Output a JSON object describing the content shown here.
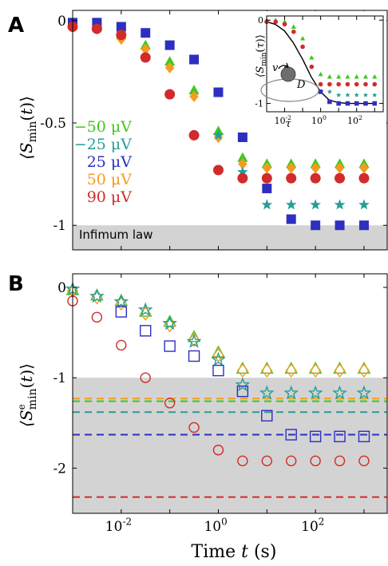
{
  "chart_data": [
    {
      "panel": "A",
      "type": "scatter",
      "ylabel": "⟨S_min(t)⟩",
      "xscale": "log",
      "xlim": [
        0.001,
        3000
      ],
      "ylim": [
        -1.12,
        0.05
      ],
      "ytick_labels": [
        "0",
        "-0.5",
        "-1"
      ],
      "yticks": [
        0,
        -0.5,
        -1
      ],
      "annotation": "Infimum law",
      "shaded_region": [
        -1.12,
        -1.0
      ],
      "legend_position": "left-middle",
      "legend": [
        {
          "label": "−50 μV",
          "color": "#3fc81e"
        },
        {
          "label": "−25 μV",
          "color": "#279d96"
        },
        {
          "label": "25 μV",
          "color": "#2d2fc0"
        },
        {
          "label": "50 μV",
          "color": "#f59b1f"
        },
        {
          "label": "90 μV",
          "color": "#d12b2b"
        }
      ],
      "series": [
        {
          "name": "−50 μV",
          "marker": "triangle",
          "color": "#3fc81e",
          "filled": true,
          "x": [
            0.001,
            0.00316,
            0.01,
            0.0316,
            0.1,
            0.316,
            1,
            3.16,
            10,
            31.6,
            100,
            316,
            1000
          ],
          "y": [
            -0.01,
            -0.03,
            -0.07,
            -0.12,
            -0.2,
            -0.34,
            -0.54,
            -0.67,
            -0.7,
            -0.7,
            -0.7,
            -0.7,
            -0.7
          ]
        },
        {
          "name": "50 μV",
          "marker": "diamond",
          "color": "#f59b1f",
          "filled": true,
          "x": [
            0.001,
            0.00316,
            0.01,
            0.0316,
            0.1,
            0.316,
            1,
            3.16,
            10,
            31.6,
            100,
            316,
            1000
          ],
          "y": [
            -0.02,
            -0.04,
            -0.09,
            -0.14,
            -0.23,
            -0.37,
            -0.57,
            -0.7,
            -0.72,
            -0.72,
            -0.72,
            -0.72,
            -0.72
          ]
        },
        {
          "name": "25 μV",
          "marker": "square",
          "color": "#2d2fc0",
          "filled": true,
          "x": [
            0.001,
            0.00316,
            0.01,
            0.0316,
            0.1,
            0.316,
            1,
            3.16,
            10,
            31.6,
            100,
            316,
            1000
          ],
          "y": [
            -0.01,
            -0.01,
            -0.03,
            -0.06,
            -0.12,
            -0.19,
            -0.35,
            -0.57,
            -0.82,
            -0.97,
            -1.0,
            -1.0,
            -1.0
          ]
        },
        {
          "name": "−25 μV",
          "marker": "star",
          "color": "#279d96",
          "filled": true,
          "x": [
            1,
            3.16,
            10,
            31.6,
            100,
            316,
            1000
          ],
          "y": [
            -0.56,
            -0.74,
            -0.9,
            -0.9,
            -0.9,
            -0.9,
            -0.9
          ]
        },
        {
          "name": "90 μV",
          "marker": "circle",
          "color": "#d12b2b",
          "filled": true,
          "x": [
            0.001,
            0.00316,
            0.01,
            0.0316,
            0.1,
            0.316,
            1,
            3.16,
            10,
            31.6,
            100,
            316,
            1000
          ],
          "y": [
            -0.03,
            -0.04,
            -0.07,
            -0.18,
            -0.36,
            -0.56,
            -0.73,
            -0.77,
            -0.77,
            -0.77,
            -0.77,
            -0.77,
            -0.77
          ]
        }
      ]
    },
    {
      "panel": "A-inset",
      "type": "scatter",
      "xlabel": "τ",
      "ylabel": "⟨S_min(τ)⟩",
      "xscale": "log",
      "xlim": [
        0.001,
        3000
      ],
      "ylim": [
        -1.1,
        0.05
      ],
      "ytick_labels": [
        "0",
        "-1"
      ],
      "yticks": [
        0,
        -1
      ],
      "xtick_labels": [
        "10-2",
        "100",
        "102"
      ],
      "xticks": [
        0.01,
        1,
        100
      ],
      "diagram_labels": {
        "v": "v",
        "D": "D"
      },
      "curve": {
        "color": "#000000",
        "x": [
          0.001,
          0.003,
          0.01,
          0.03,
          0.1,
          0.3,
          1,
          3,
          10,
          30,
          100,
          300,
          1000
        ],
        "y": [
          -0.02,
          -0.05,
          -0.13,
          -0.27,
          -0.47,
          -0.68,
          -0.86,
          -0.96,
          -0.99,
          -1.0,
          -1.0,
          -1.0,
          -1.0
        ]
      },
      "series": [
        {
          "name": "−50 μV",
          "marker": "triangle",
          "color": "#3fc81e",
          "x": [
            0.001,
            0.00316,
            0.01,
            0.0316,
            0.1,
            0.316,
            1,
            3.16,
            10,
            31.6,
            100,
            316,
            1000
          ],
          "y": [
            0,
            0,
            -0.02,
            -0.08,
            -0.22,
            -0.45,
            -0.65,
            -0.68,
            -0.68,
            -0.68,
            -0.68,
            -0.68,
            -0.68
          ]
        },
        {
          "name": "90 μV",
          "marker": "circle",
          "color": "#d12b2b",
          "x": [
            0.001,
            0.00316,
            0.01,
            0.0316,
            0.1,
            0.316,
            1,
            3.16,
            10,
            31.6,
            100,
            316,
            1000
          ],
          "y": [
            -0.02,
            -0.02,
            -0.05,
            -0.14,
            -0.32,
            -0.56,
            -0.77,
            -0.77,
            -0.77,
            -0.77,
            -0.77,
            -0.77,
            -0.77
          ]
        },
        {
          "name": "−25 μV",
          "marker": "star",
          "color": "#279d96",
          "x": [
            3.16,
            10,
            31.6,
            100,
            316,
            1000
          ],
          "y": [
            -0.86,
            -0.9,
            -0.9,
            -0.9,
            -0.9,
            -0.9
          ]
        },
        {
          "name": "25 μV",
          "marker": "square",
          "color": "#2d2fc0",
          "x": [
            1,
            3.16,
            10,
            31.6,
            100,
            316,
            1000
          ],
          "y": [
            -0.86,
            -0.98,
            -1.0,
            -1.0,
            -1.0,
            -1.0,
            -1.0
          ]
        }
      ]
    },
    {
      "panel": "B",
      "type": "scatter",
      "xlabel": "Time t (s)",
      "ylabel": "⟨S^e_min(t)⟩",
      "xscale": "log",
      "xlim": [
        0.001,
        3000
      ],
      "ylim": [
        -2.5,
        0.15
      ],
      "ytick_labels": [
        "0",
        "-1",
        "-2"
      ],
      "yticks": [
        0,
        -1,
        -2
      ],
      "xtick_labels": [
        "10-2",
        "100",
        "102"
      ],
      "xticks": [
        0.01,
        1,
        100
      ],
      "shaded_region": [
        -2.5,
        -1.0
      ],
      "reference_lines": [
        {
          "name": "50 μV",
          "color": "#f59b1f",
          "y": -1.23
        },
        {
          "name": "−50 μV",
          "color": "#3fc81e",
          "y": -1.26
        },
        {
          "name": "−25 μV",
          "color": "#279d96",
          "y": -1.38
        },
        {
          "name": "25 μV",
          "color": "#2d2fc0",
          "y": -1.63
        },
        {
          "name": "90 μV",
          "color": "#d12b2b",
          "y": -2.32
        }
      ],
      "series": [
        {
          "name": "−50 μV",
          "marker": "triangle",
          "color": "#3fc81e",
          "filled": false,
          "x": [
            0.001,
            0.00316,
            0.01,
            0.0316,
            0.1,
            0.316,
            1,
            3.16,
            10,
            31.6,
            100,
            316,
            1000
          ],
          "y": [
            -0.03,
            -0.09,
            -0.15,
            -0.27,
            -0.38,
            -0.55,
            -0.72,
            -0.9,
            -0.9,
            -0.9,
            -0.9,
            -0.9,
            -0.9
          ]
        },
        {
          "name": "50 μV",
          "marker": "diamond",
          "color": "#f59b1f",
          "filled": false,
          "x": [
            0.001,
            0.00316,
            0.01,
            0.0316,
            0.1,
            0.316,
            1,
            3.16,
            10,
            31.6,
            100,
            316,
            1000
          ],
          "y": [
            -0.04,
            -0.11,
            -0.18,
            -0.29,
            -0.42,
            -0.58,
            -0.75,
            -0.92,
            -0.92,
            -0.92,
            -0.92,
            -0.92,
            -0.92
          ]
        },
        {
          "name": "−25 μV",
          "marker": "star",
          "color": "#279d96",
          "filled": false,
          "x": [
            0.001,
            0.00316,
            0.01,
            0.0316,
            0.1,
            0.316,
            1,
            3.16,
            10,
            31.6,
            100,
            316,
            1000
          ],
          "y": [
            -0.02,
            -0.1,
            -0.16,
            -0.25,
            -0.4,
            -0.6,
            -0.8,
            -1.08,
            -1.17,
            -1.17,
            -1.17,
            -1.17,
            -1.17
          ]
        },
        {
          "name": "25 μV",
          "marker": "square",
          "color": "#2d2fc0",
          "filled": false,
          "x": [
            0.01,
            0.0316,
            0.1,
            0.316,
            1,
            3.16,
            10,
            31.6,
            100,
            316,
            1000
          ],
          "y": [
            -0.27,
            -0.48,
            -0.65,
            -0.76,
            -0.92,
            -1.15,
            -1.42,
            -1.63,
            -1.65,
            -1.65,
            -1.65
          ]
        },
        {
          "name": "90 μV",
          "marker": "circle",
          "color": "#d12b2b",
          "filled": false,
          "x": [
            0.001,
            0.00316,
            0.01,
            0.0316,
            0.1,
            0.316,
            1,
            3.16,
            10,
            31.6,
            100,
            316,
            1000
          ],
          "y": [
            -0.15,
            -0.33,
            -0.64,
            -1.0,
            -1.28,
            -1.55,
            -1.8,
            -1.92,
            -1.92,
            -1.92,
            -1.92,
            -1.92,
            -1.92
          ]
        }
      ]
    }
  ]
}
